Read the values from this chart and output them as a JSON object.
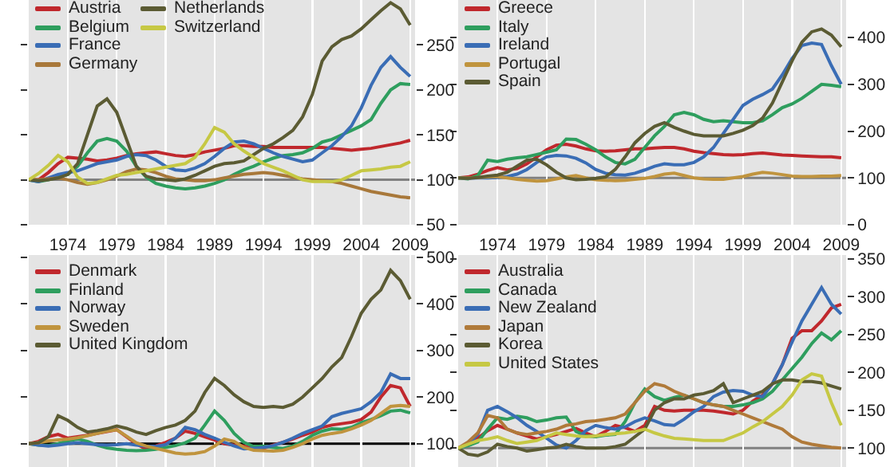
{
  "chart_data": [
    {
      "type": "line",
      "x": [
        1970,
        1971,
        1972,
        1973,
        1974,
        1975,
        1976,
        1977,
        1978,
        1979,
        1980,
        1981,
        1982,
        1983,
        1984,
        1985,
        1986,
        1987,
        1988,
        1989,
        1990,
        1991,
        1992,
        1993,
        1994,
        1995,
        1996,
        1997,
        1998,
        1999,
        2000,
        2001,
        2002,
        2003,
        2004,
        2005,
        2006,
        2007,
        2008,
        2009
      ],
      "xlim": [
        1970,
        2009.5
      ],
      "xticks": [
        1974,
        1979,
        1984,
        1989,
        1994,
        1999,
        2004,
        2009
      ],
      "ylim": [
        50,
        300
      ],
      "yticks": [
        50,
        100,
        150,
        200,
        250
      ],
      "grid": "x",
      "tick_labels": "y",
      "legend": "top left",
      "ref_lines": [
        {
          "axis": "y",
          "value": 100,
          "color": "#808080"
        }
      ],
      "series": [
        {
          "name": "Austria",
          "color": "#c0282d",
          "values": [
            100,
            100,
            108,
            118,
            125,
            124,
            123,
            121,
            122,
            124,
            127,
            129,
            130,
            131,
            129,
            127,
            126,
            128,
            131,
            133,
            135,
            138,
            138,
            137,
            137,
            136,
            136,
            136,
            136,
            136,
            136,
            135,
            134,
            133,
            134,
            135,
            137,
            139,
            141,
            144
          ]
        },
        {
          "name": "Belgium",
          "color": "#2e9e5e",
          "values": [
            100,
            98,
            100,
            103,
            106,
            115,
            130,
            143,
            146,
            143,
            132,
            115,
            103,
            96,
            93,
            91,
            90,
            91,
            93,
            96,
            100,
            106,
            111,
            115,
            120,
            124,
            127,
            128,
            130,
            135,
            142,
            145,
            150,
            155,
            160,
            167,
            185,
            200,
            207,
            206
          ]
        },
        {
          "name": "France",
          "color": "#3a6db5",
          "values": [
            100,
            98,
            102,
            106,
            108,
            110,
            114,
            118,
            120,
            122,
            126,
            128,
            127,
            122,
            115,
            111,
            110,
            113,
            118,
            126,
            135,
            142,
            143,
            140,
            135,
            130,
            126,
            123,
            120,
            122,
            130,
            138,
            148,
            160,
            180,
            205,
            225,
            237,
            225,
            215
          ]
        },
        {
          "name": "Germany",
          "color": "#a8783a",
          "values": [
            100,
            100,
            101,
            102,
            100,
            97,
            95,
            97,
            100,
            104,
            109,
            112,
            111,
            108,
            104,
            101,
            100,
            99,
            99,
            100,
            102,
            104,
            106,
            107,
            108,
            107,
            105,
            103,
            101,
            100,
            99,
            98,
            96,
            93,
            90,
            87,
            85,
            83,
            81,
            80
          ]
        },
        {
          "name": "Netherlands",
          "color": "#5b5b33",
          "values": [
            100,
            99,
            100,
            102,
            106,
            118,
            150,
            182,
            190,
            175,
            145,
            115,
            104,
            101,
            100,
            99,
            101,
            105,
            110,
            115,
            118,
            119,
            121,
            128,
            135,
            140,
            147,
            155,
            170,
            195,
            232,
            248,
            256,
            260,
            268,
            278,
            288,
            297,
            290,
            272
          ]
        },
        {
          "name": "Switzerland",
          "color": "#c6c844",
          "values": [
            100,
            107,
            116,
            127,
            120,
            103,
            96,
            97,
            101,
            105,
            106,
            108,
            110,
            112,
            114,
            116,
            118,
            125,
            140,
            158,
            153,
            140,
            132,
            125,
            118,
            114,
            110,
            105,
            100,
            98,
            98,
            98,
            100,
            105,
            110,
            111,
            112,
            114,
            115,
            120
          ]
        }
      ]
    },
    {
      "type": "line",
      "x": [
        1970,
        1971,
        1972,
        1973,
        1974,
        1975,
        1976,
        1977,
        1978,
        1979,
        1980,
        1981,
        1982,
        1983,
        1984,
        1985,
        1986,
        1987,
        1988,
        1989,
        1990,
        1991,
        1992,
        1993,
        1994,
        1995,
        1996,
        1997,
        1998,
        1999,
        2000,
        2001,
        2002,
        2003,
        2004,
        2005,
        2006,
        2007,
        2008,
        2009
      ],
      "xlim": [
        1970,
        2009.5
      ],
      "xticks": [
        1974,
        1979,
        1984,
        1989,
        1994,
        1999,
        2004,
        2009
      ],
      "ylim": [
        0,
        480
      ],
      "yticks": [
        0,
        100,
        200,
        300,
        400
      ],
      "grid": "x",
      "tick_labels": "y",
      "legend": "top left",
      "ref_lines": [
        {
          "axis": "y",
          "value": 100,
          "color": "#808080"
        }
      ],
      "series": [
        {
          "name": "Greece",
          "color": "#c0282d",
          "values": [
            100,
            102,
            108,
            116,
            122,
            117,
            120,
            130,
            145,
            160,
            170,
            172,
            168,
            162,
            158,
            157,
            158,
            160,
            162,
            162,
            164,
            165,
            165,
            162,
            157,
            154,
            152,
            150,
            149,
            150,
            152,
            153,
            151,
            149,
            148,
            147,
            146,
            145,
            145,
            143
          ]
        },
        {
          "name": "Italy",
          "color": "#2e9e5e",
          "values": [
            100,
            98,
            105,
            138,
            135,
            140,
            143,
            145,
            150,
            155,
            160,
            183,
            182,
            172,
            160,
            145,
            133,
            130,
            140,
            165,
            190,
            210,
            235,
            240,
            235,
            225,
            220,
            222,
            220,
            218,
            218,
            222,
            235,
            250,
            258,
            270,
            285,
            300,
            298,
            295
          ]
        },
        {
          "name": "Ireland",
          "color": "#3a6db5",
          "values": [
            100,
            99,
            100,
            100,
            101,
            103,
            108,
            118,
            133,
            145,
            148,
            147,
            142,
            132,
            118,
            110,
            107,
            106,
            110,
            117,
            125,
            130,
            128,
            128,
            133,
            145,
            165,
            195,
            225,
            255,
            268,
            278,
            290,
            320,
            355,
            383,
            388,
            385,
            340,
            300
          ]
        },
        {
          "name": "Portugal",
          "color": "#c0943e",
          "values": [
            100,
            100,
            101,
            102,
            103,
            100,
            97,
            95,
            93,
            94,
            98,
            102,
            105,
            100,
            96,
            95,
            94,
            95,
            97,
            99,
            103,
            108,
            110,
            105,
            100,
            98,
            97,
            97,
            100,
            103,
            108,
            112,
            110,
            107,
            104,
            103,
            103,
            104,
            104,
            105
          ]
        },
        {
          "name": "Spain",
          "color": "#5b5b33",
          "values": [
            100,
            99,
            101,
            104,
            106,
            112,
            125,
            138,
            140,
            128,
            112,
            100,
            96,
            97,
            99,
            102,
            118,
            145,
            175,
            195,
            210,
            218,
            208,
            200,
            193,
            190,
            190,
            190,
            195,
            202,
            212,
            228,
            260,
            305,
            350,
            390,
            412,
            418,
            405,
            380
          ]
        }
      ]
    },
    {
      "type": "line",
      "x": [
        1970,
        1971,
        1972,
        1973,
        1974,
        1975,
        1976,
        1977,
        1978,
        1979,
        1980,
        1981,
        1982,
        1983,
        1984,
        1985,
        1986,
        1987,
        1988,
        1989,
        1990,
        1991,
        1992,
        1993,
        1994,
        1995,
        1996,
        1997,
        1998,
        1999,
        2000,
        2001,
        2002,
        2003,
        2004,
        2005,
        2006,
        2007,
        2008,
        2009
      ],
      "xlim": [
        1970,
        2009.5
      ],
      "xticks": [
        1974,
        1979,
        1984,
        1989,
        1994,
        1999,
        2004,
        2009
      ],
      "ylim": [
        50,
        505
      ],
      "yticks": [
        100,
        200,
        300,
        400,
        500
      ],
      "grid": "x",
      "legend": "top left",
      "ref_lines": [
        {
          "axis": "y",
          "value": 100,
          "color": "#000000"
        }
      ],
      "series": [
        {
          "name": "Denmark",
          "color": "#c0282d",
          "values": [
            100,
            105,
            115,
            120,
            112,
            115,
            118,
            122,
            126,
            130,
            115,
            100,
            88,
            95,
            103,
            112,
            127,
            122,
            115,
            108,
            100,
            97,
            95,
            89,
            90,
            97,
            103,
            110,
            118,
            125,
            135,
            140,
            143,
            146,
            152,
            168,
            200,
            225,
            220,
            180
          ]
        },
        {
          "name": "Finland",
          "color": "#2e9e5e",
          "values": [
            100,
            97,
            96,
            100,
            106,
            110,
            105,
            97,
            91,
            88,
            86,
            85,
            86,
            88,
            92,
            96,
            102,
            112,
            140,
            170,
            150,
            122,
            103,
            94,
            95,
            92,
            90,
            95,
            105,
            118,
            127,
            132,
            131,
            135,
            145,
            152,
            160,
            170,
            172,
            166
          ]
        },
        {
          "name": "Norway",
          "color": "#3a6db5",
          "values": [
            100,
            97,
            95,
            97,
            100,
            102,
            100,
            98,
            97,
            98,
            100,
            97,
            95,
            94,
            98,
            112,
            135,
            130,
            120,
            112,
            103,
            95,
            89,
            90,
            92,
            96,
            103,
            112,
            122,
            130,
            138,
            158,
            165,
            170,
            175,
            190,
            210,
            250,
            240,
            240
          ]
        },
        {
          "name": "Sweden",
          "color": "#c0943e",
          "values": [
            100,
            102,
            106,
            108,
            110,
            113,
            117,
            122,
            127,
            130,
            116,
            102,
            95,
            90,
            85,
            80,
            78,
            79,
            83,
            95,
            110,
            105,
            92,
            86,
            85,
            84,
            86,
            92,
            100,
            110,
            118,
            122,
            125,
            132,
            140,
            150,
            165,
            180,
            182,
            180
          ]
        },
        {
          "name": "United Kingdom",
          "color": "#5b5b33",
          "values": [
            100,
            102,
            115,
            160,
            150,
            135,
            125,
            128,
            132,
            138,
            133,
            125,
            120,
            128,
            135,
            140,
            150,
            170,
            210,
            240,
            225,
            205,
            190,
            180,
            178,
            180,
            178,
            185,
            200,
            220,
            240,
            265,
            285,
            330,
            380,
            410,
            430,
            472,
            450,
            410
          ]
        }
      ]
    },
    {
      "type": "line",
      "x": [
        1970,
        1971,
        1972,
        1973,
        1974,
        1975,
        1976,
        1977,
        1978,
        1979,
        1980,
        1981,
        1982,
        1983,
        1984,
        1985,
        1986,
        1987,
        1988,
        1989,
        1990,
        1991,
        1992,
        1993,
        1994,
        1995,
        1996,
        1997,
        1998,
        1999,
        2000,
        2001,
        2002,
        2003,
        2004,
        2005,
        2006,
        2007,
        2008,
        2009
      ],
      "xlim": [
        1970,
        2009.5
      ],
      "xticks": [
        1974,
        1979,
        1984,
        1989,
        1994,
        1999,
        2004,
        2009
      ],
      "ylim": [
        75,
        355
      ],
      "yticks": [
        100,
        150,
        200,
        250,
        300,
        350
      ],
      "grid": "x",
      "legend": "top left",
      "ref_lines": [
        {
          "axis": "y",
          "value": 100,
          "color": "#808080"
        }
      ],
      "series": [
        {
          "name": "Australia",
          "color": "#c0282d",
          "values": [
            100,
            105,
            113,
            123,
            130,
            125,
            120,
            116,
            112,
            115,
            118,
            122,
            126,
            120,
            115,
            122,
            130,
            127,
            122,
            130,
            155,
            150,
            149,
            150,
            150,
            150,
            149,
            147,
            145,
            150,
            162,
            170,
            185,
            210,
            245,
            255,
            255,
            268,
            285,
            290
          ]
        },
        {
          "name": "Canada",
          "color": "#2e9e5e",
          "values": [
            100,
            103,
            108,
            125,
            140,
            138,
            142,
            140,
            135,
            137,
            140,
            141,
            122,
            116,
            115,
            117,
            118,
            135,
            160,
            178,
            168,
            163,
            167,
            170,
            165,
            160,
            157,
            155,
            155,
            157,
            160,
            165,
            175,
            190,
            205,
            220,
            238,
            252,
            243,
            255
          ]
        },
        {
          "name": "New Zealand",
          "color": "#3a6db5",
          "values": [
            100,
            105,
            118,
            150,
            155,
            148,
            140,
            130,
            122,
            113,
            104,
            100,
            110,
            123,
            130,
            127,
            125,
            128,
            135,
            140,
            136,
            131,
            130,
            138,
            148,
            155,
            168,
            174,
            176,
            175,
            170,
            168,
            185,
            210,
            240,
            268,
            290,
            312,
            290,
            277
          ]
        },
        {
          "name": "Japan",
          "color": "#b07a3a",
          "values": [
            100,
            108,
            120,
            143,
            140,
            125,
            120,
            118,
            120,
            122,
            125,
            130,
            132,
            135,
            136,
            138,
            140,
            145,
            160,
            175,
            185,
            182,
            175,
            170,
            165,
            160,
            157,
            155,
            150,
            145,
            140,
            135,
            130,
            125,
            115,
            108,
            105,
            103,
            101,
            100
          ]
        },
        {
          "name": "Korea",
          "color": "#5b5b33",
          "values": [
            100,
            92,
            90,
            95,
            105,
            102,
            100,
            96,
            98,
            100,
            101,
            105,
            102,
            100,
            100,
            100,
            102,
            105,
            115,
            125,
            150,
            160,
            165,
            165,
            170,
            172,
            176,
            185,
            160,
            165,
            170,
            175,
            185,
            190,
            190,
            188,
            188,
            186,
            182,
            178
          ]
        },
        {
          "name": "United States",
          "color": "#c6c844",
          "values": [
            100,
            105,
            110,
            112,
            115,
            110,
            106,
            108,
            110,
            115,
            120,
            118,
            116,
            115,
            116,
            118,
            119,
            120,
            122,
            125,
            120,
            116,
            113,
            112,
            111,
            110,
            110,
            110,
            115,
            120,
            128,
            135,
            145,
            155,
            170,
            190,
            198,
            195,
            160,
            130
          ]
        }
      ]
    }
  ]
}
